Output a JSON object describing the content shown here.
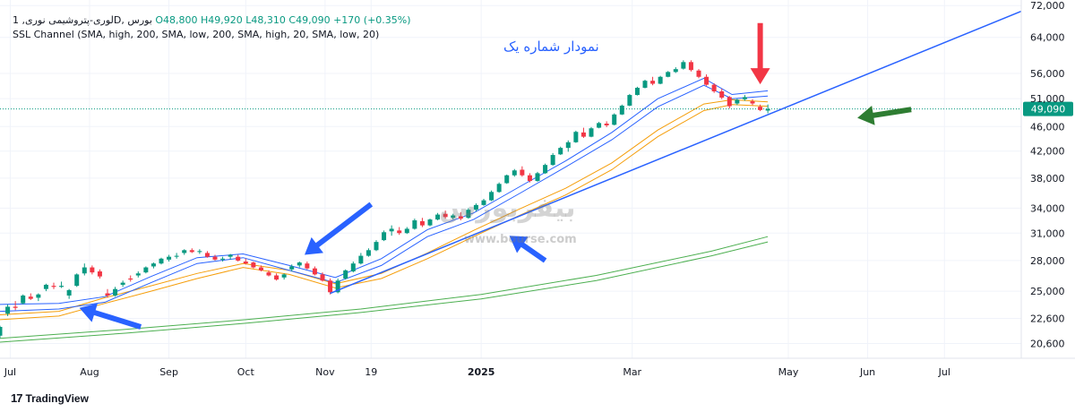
{
  "legend": {
    "symbol_line": "لوری-پتروشیمی نوری, 1D, بورس",
    "open": "O48,800",
    "high": "H49,920",
    "low": "L48,310",
    "close": "C49,090",
    "change": "+170 (+0.35%)",
    "indicator": "SSL Channel (SMA, high, 200, SMA, low, 200, SMA, high, 20, SMA, low, 20)"
  },
  "title_text": "نمودار شماره یک",
  "watermark": {
    "text": "بیفربورس",
    "url": "www.bourse.com"
  },
  "branding": {
    "logo_mark": "17",
    "name": "TradingView"
  },
  "colors": {
    "up": "#089981",
    "down": "#f23645",
    "grid": "#f0f3fa",
    "trendline": "#2962ff",
    "ssl_blue": "#2962ff",
    "ssl_orange": "#f59e0b",
    "ssl_green": "#4caf50",
    "price_line": "#089981",
    "arrow_blue": "#2962ff",
    "arrow_red": "#f23645",
    "arrow_green": "#2e7d32"
  },
  "chart_data": {
    "type": "candlestick",
    "y_scale": "log",
    "ylim": [
      19500,
      73500
    ],
    "y_ticks": [
      20600,
      22600,
      25000,
      28000,
      31000,
      34000,
      38000,
      42000,
      46000,
      51000,
      56000,
      64000,
      72000
    ],
    "y_tick_labels": [
      "20,600",
      "22,600",
      "25,000",
      "28,000",
      "31,000",
      "34,000",
      "38,000",
      "42,000",
      "46,000",
      "51,000",
      "56,000",
      "64,000",
      "72,000"
    ],
    "x_range": [
      "2024-06-27",
      "2025-07-31"
    ],
    "x_ticks": [
      {
        "date": "2024-07-01",
        "label": "Jul"
      },
      {
        "date": "2024-08-01",
        "label": "Aug"
      },
      {
        "date": "2024-09-01",
        "label": "Sep"
      },
      {
        "date": "2024-10-01",
        "label": "Oct"
      },
      {
        "date": "2024-11-01",
        "label": "Nov"
      },
      {
        "date": "2024-11-19",
        "label": "19"
      },
      {
        "date": "2025-01-01",
        "label": "2025"
      },
      {
        "date": "2025-03-01",
        "label": "Mar"
      },
      {
        "date": "2025-05-01",
        "label": "May"
      },
      {
        "date": "2025-06-01",
        "label": "Jun"
      },
      {
        "date": "2025-07-01",
        "label": "Jul"
      }
    ],
    "last_price": {
      "value": 49090,
      "label": "49,090"
    },
    "candles": [
      [
        "2024-06-27",
        21200,
        22000,
        21000,
        21900
      ],
      [
        "2024-06-30",
        23000,
        23800,
        22800,
        23600
      ],
      [
        "2024-07-03",
        23600,
        24100,
        23300,
        23500
      ],
      [
        "2024-07-06",
        23900,
        24700,
        23800,
        24600
      ],
      [
        "2024-07-09",
        24500,
        24800,
        24200,
        24300
      ],
      [
        "2024-07-12",
        24400,
        24800,
        24100,
        24700
      ],
      [
        "2024-07-15",
        25200,
        25700,
        25000,
        25600
      ],
      [
        "2024-07-18",
        25500,
        25800,
        25200,
        25400
      ],
      [
        "2024-07-21",
        25400,
        25900,
        25300,
        25500
      ],
      [
        "2024-07-24",
        24600,
        25200,
        24300,
        25100
      ],
      [
        "2024-07-27",
        25500,
        26700,
        25400,
        26600
      ],
      [
        "2024-07-30",
        26700,
        27700,
        26500,
        27300
      ],
      [
        "2024-08-02",
        27300,
        27500,
        26600,
        26800
      ],
      [
        "2024-08-05",
        26900,
        27100,
        26200,
        26400
      ],
      [
        "2024-08-08",
        24800,
        25200,
        24400,
        24600
      ],
      [
        "2024-08-11",
        24600,
        25400,
        24500,
        25200
      ],
      [
        "2024-08-14",
        25600,
        26000,
        25400,
        25800
      ],
      [
        "2024-08-17",
        26200,
        26500,
        25900,
        26100
      ],
      [
        "2024-08-20",
        26500,
        26900,
        26300,
        26700
      ],
      [
        "2024-08-23",
        26800,
        27400,
        26700,
        27300
      ],
      [
        "2024-08-26",
        27400,
        27800,
        27200,
        27700
      ],
      [
        "2024-08-29",
        27700,
        28300,
        27600,
        28200
      ],
      [
        "2024-09-01",
        28100,
        28600,
        27900,
        28400
      ],
      [
        "2024-09-04",
        28400,
        28800,
        28200,
        28500
      ],
      [
        "2024-09-07",
        28800,
        29200,
        28600,
        29100
      ],
      [
        "2024-09-10",
        29100,
        29300,
        28800,
        28900
      ],
      [
        "2024-09-13",
        28900,
        29200,
        28700,
        29000
      ],
      [
        "2024-09-16",
        28800,
        29000,
        28300,
        28400
      ],
      [
        "2024-09-19",
        28400,
        28600,
        28000,
        28100
      ],
      [
        "2024-09-22",
        28100,
        28400,
        27900,
        28200
      ],
      [
        "2024-09-25",
        28400,
        28700,
        28100,
        28600
      ],
      [
        "2024-09-28",
        28400,
        28600,
        27900,
        28000
      ],
      [
        "2024-10-01",
        27900,
        28200,
        27600,
        27700
      ],
      [
        "2024-10-04",
        27800,
        27900,
        27200,
        27300
      ],
      [
        "2024-10-07",
        27300,
        27500,
        26900,
        27000
      ],
      [
        "2024-10-10",
        26800,
        27000,
        26400,
        26500
      ],
      [
        "2024-10-13",
        26500,
        26700,
        26000,
        26100
      ],
      [
        "2024-10-16",
        26300,
        26700,
        26100,
        26600
      ],
      [
        "2024-10-19",
        27100,
        27600,
        26900,
        27400
      ],
      [
        "2024-10-22",
        27500,
        27900,
        27300,
        27800
      ],
      [
        "2024-10-25",
        27700,
        27900,
        27100,
        27200
      ],
      [
        "2024-10-28",
        27200,
        27400,
        26500,
        26600
      ],
      [
        "2024-10-31",
        26600,
        26800,
        25900,
        26000
      ],
      [
        "2024-11-03",
        26000,
        26200,
        24700,
        24900
      ],
      [
        "2024-11-06",
        24900,
        26200,
        24800,
        26000
      ],
      [
        "2024-11-09",
        26200,
        27100,
        26100,
        27000
      ],
      [
        "2024-11-12",
        26900,
        27900,
        26800,
        27700
      ],
      [
        "2024-11-15",
        27700,
        28800,
        27600,
        28500
      ],
      [
        "2024-11-18",
        28500,
        29300,
        28400,
        29100
      ],
      [
        "2024-11-21",
        29100,
        30200,
        29000,
        30000
      ],
      [
        "2024-11-24",
        30200,
        31300,
        30100,
        31100
      ],
      [
        "2024-11-27",
        31200,
        31900,
        30700,
        31500
      ],
      [
        "2024-11-30",
        31300,
        31700,
        30800,
        31000
      ],
      [
        "2024-12-03",
        31000,
        31700,
        30900,
        31500
      ],
      [
        "2024-12-06",
        31500,
        32700,
        31400,
        32500
      ],
      [
        "2024-12-09",
        32400,
        32800,
        31700,
        31900
      ],
      [
        "2024-12-12",
        31900,
        32700,
        31800,
        32600
      ],
      [
        "2024-12-15",
        32600,
        33400,
        32500,
        33200
      ],
      [
        "2024-12-18",
        33300,
        33700,
        32700,
        32900
      ],
      [
        "2024-12-21",
        32800,
        33300,
        32600,
        33100
      ],
      [
        "2024-12-24",
        33000,
        33500,
        32500,
        32700
      ],
      [
        "2024-12-27",
        32800,
        34000,
        32700,
        33800
      ],
      [
        "2024-12-30",
        33800,
        34600,
        33600,
        34400
      ],
      [
        "2025-01-02",
        34400,
        35200,
        34300,
        35000
      ],
      [
        "2025-01-05",
        35000,
        36300,
        34900,
        36100
      ],
      [
        "2025-01-08",
        36100,
        37400,
        36000,
        37200
      ],
      [
        "2025-01-11",
        37300,
        38500,
        37200,
        38400
      ],
      [
        "2025-01-14",
        38400,
        39300,
        38200,
        39100
      ],
      [
        "2025-01-17",
        39200,
        39700,
        38200,
        38400
      ],
      [
        "2025-01-20",
        38400,
        38700,
        37400,
        37600
      ],
      [
        "2025-01-23",
        37600,
        38900,
        37500,
        38700
      ],
      [
        "2025-01-26",
        38700,
        40100,
        38600,
        39900
      ],
      [
        "2025-01-29",
        39900,
        41700,
        39800,
        41400
      ],
      [
        "2025-02-01",
        41500,
        42700,
        41400,
        42500
      ],
      [
        "2025-02-04",
        42500,
        43700,
        41900,
        43400
      ],
      [
        "2025-02-07",
        43400,
        45300,
        43300,
        45100
      ],
      [
        "2025-02-10",
        45000,
        45800,
        44100,
        44300
      ],
      [
        "2025-02-13",
        44300,
        45900,
        44200,
        45700
      ],
      [
        "2025-02-16",
        45800,
        46800,
        45700,
        46600
      ],
      [
        "2025-02-19",
        46500,
        46900,
        45900,
        46200
      ],
      [
        "2025-02-22",
        46300,
        48300,
        46200,
        48100
      ],
      [
        "2025-02-25",
        48100,
        49900,
        48000,
        49700
      ],
      [
        "2025-02-28",
        49700,
        51900,
        49600,
        51700
      ],
      [
        "2025-03-03",
        51700,
        53300,
        51600,
        53100
      ],
      [
        "2025-03-06",
        53100,
        54700,
        53000,
        54500
      ],
      [
        "2025-03-09",
        54500,
        55300,
        53600,
        53900
      ],
      [
        "2025-03-12",
        53900,
        55500,
        53800,
        55300
      ],
      [
        "2025-03-15",
        55300,
        56500,
        55200,
        56300
      ],
      [
        "2025-03-18",
        56300,
        57300,
        56100,
        56900
      ],
      [
        "2025-03-21",
        57000,
        58800,
        56800,
        58400
      ],
      [
        "2025-03-24",
        58400,
        58800,
        56400,
        56700
      ],
      [
        "2025-03-27",
        56600,
        56900,
        55000,
        55300
      ],
      [
        "2025-03-30",
        55300,
        55800,
        53500,
        53700
      ],
      [
        "2025-04-02",
        53700,
        54000,
        52100,
        52400
      ],
      [
        "2025-04-05",
        52400,
        52900,
        50900,
        51200
      ],
      [
        "2025-04-08",
        51300,
        51500,
        49200,
        49600
      ],
      [
        "2025-04-11",
        50100,
        51000,
        49800,
        50800
      ],
      [
        "2025-04-14",
        50900,
        51700,
        50600,
        51300
      ],
      [
        "2025-04-17",
        50500,
        50900,
        49800,
        50100
      ],
      [
        "2025-04-20",
        49500,
        49900,
        48700,
        48900
      ],
      [
        "2025-04-23",
        48800,
        49920,
        48310,
        49090
      ]
    ],
    "ssl_channel_20": {
      "upper": [
        [
          "2024-06-27",
          23800
        ],
        [
          "2024-07-20",
          23900
        ],
        [
          "2024-08-07",
          24500
        ],
        [
          "2024-08-25",
          26400
        ],
        [
          "2024-09-12",
          28300
        ],
        [
          "2024-09-30",
          28700
        ],
        [
          "2024-10-18",
          27500
        ],
        [
          "2024-11-05",
          26300
        ],
        [
          "2024-11-23",
          28200
        ],
        [
          "2024-12-11",
          31400
        ],
        [
          "2024-12-29",
          33400
        ],
        [
          "2025-01-16",
          36800
        ],
        [
          "2025-02-03",
          40500
        ],
        [
          "2025-02-21",
          45000
        ],
        [
          "2025-03-11",
          51000
        ],
        [
          "2025-03-29",
          55000
        ],
        [
          "2025-04-09",
          51800
        ],
        [
          "2025-04-23",
          52500
        ]
      ],
      "lower": [
        [
          "2024-06-27",
          23200
        ],
        [
          "2024-07-20",
          23400
        ],
        [
          "2024-08-07",
          24000
        ],
        [
          "2024-08-25",
          25800
        ],
        [
          "2024-09-12",
          27700
        ],
        [
          "2024-09-30",
          28300
        ],
        [
          "2024-10-18",
          27000
        ],
        [
          "2024-11-05",
          25800
        ],
        [
          "2024-11-23",
          27500
        ],
        [
          "2024-12-11",
          30600
        ],
        [
          "2024-12-29",
          32600
        ],
        [
          "2025-01-16",
          35900
        ],
        [
          "2025-02-03",
          39600
        ],
        [
          "2025-02-21",
          43800
        ],
        [
          "2025-03-11",
          49500
        ],
        [
          "2025-03-29",
          53600
        ],
        [
          "2025-04-09",
          51000
        ],
        [
          "2025-04-23",
          51500
        ]
      ]
    },
    "ssl_orange_band": {
      "upper": [
        [
          "2024-06-27",
          22900
        ],
        [
          "2024-07-20",
          23200
        ],
        [
          "2024-08-07",
          24400
        ],
        [
          "2024-08-25",
          25500
        ],
        [
          "2024-09-12",
          26700
        ],
        [
          "2024-09-30",
          27700
        ],
        [
          "2024-10-18",
          27000
        ],
        [
          "2024-11-05",
          25700
        ],
        [
          "2024-11-23",
          26700
        ],
        [
          "2024-12-11",
          28800
        ],
        [
          "2024-12-29",
          31300
        ],
        [
          "2025-01-16",
          33900
        ],
        [
          "2025-02-03",
          36600
        ],
        [
          "2025-02-21",
          40200
        ],
        [
          "2025-03-11",
          45400
        ],
        [
          "2025-03-29",
          50000
        ],
        [
          "2025-04-09",
          50800
        ],
        [
          "2025-04-23",
          50400
        ]
      ],
      "lower": [
        [
          "2024-06-27",
          22500
        ],
        [
          "2024-07-20",
          22800
        ],
        [
          "2024-08-07",
          23900
        ],
        [
          "2024-08-25",
          25000
        ],
        [
          "2024-09-12",
          26200
        ],
        [
          "2024-09-30",
          27300
        ],
        [
          "2024-10-18",
          26600
        ],
        [
          "2024-11-05",
          25300
        ],
        [
          "2024-11-23",
          26200
        ],
        [
          "2024-12-11",
          28200
        ],
        [
          "2024-12-29",
          30600
        ],
        [
          "2025-01-16",
          33100
        ],
        [
          "2025-02-03",
          35700
        ],
        [
          "2025-02-21",
          39200
        ],
        [
          "2025-03-11",
          44300
        ],
        [
          "2025-03-29",
          48800
        ],
        [
          "2025-04-09",
          49900
        ],
        [
          "2025-04-23",
          49600
        ]
      ]
    },
    "ssl_channel_200": {
      "upper": [
        [
          "2024-06-27",
          21000
        ],
        [
          "2024-08-15",
          21700
        ],
        [
          "2024-10-01",
          22500
        ],
        [
          "2024-11-15",
          23400
        ],
        [
          "2025-01-01",
          24700
        ],
        [
          "2025-02-15",
          26500
        ],
        [
          "2025-04-01",
          29000
        ],
        [
          "2025-04-23",
          30600
        ]
      ],
      "lower": [
        [
          "2024-06-27",
          20700
        ],
        [
          "2024-08-15",
          21400
        ],
        [
          "2024-10-01",
          22200
        ],
        [
          "2024-11-15",
          23100
        ],
        [
          "2025-01-01",
          24300
        ],
        [
          "2025-02-15",
          26000
        ],
        [
          "2025-04-01",
          28500
        ],
        [
          "2025-04-23",
          30000
        ]
      ]
    },
    "trendline": [
      [
        "2024-11-03",
        24800
      ],
      [
        "2025-07-31",
        70500
      ]
    ],
    "annotations": [
      {
        "type": "arrow",
        "color": "blue",
        "from": [
          "2024-08-21",
          21900
        ],
        "to": [
          "2024-07-28",
          23500
        ]
      },
      {
        "type": "arrow",
        "color": "blue",
        "from": [
          "2024-11-19",
          34500
        ],
        "to": [
          "2024-10-24",
          28600
        ]
      },
      {
        "type": "arrow",
        "color": "blue",
        "from": [
          "2025-01-26",
          28000
        ],
        "to": [
          "2025-01-12",
          30700
        ]
      },
      {
        "type": "arrow",
        "color": "red",
        "from": [
          "2025-04-20",
          67500
        ],
        "to": [
          "2025-04-20",
          53800
        ]
      },
      {
        "type": "arrow",
        "color": "green",
        "from": [
          "2025-06-18",
          49000
        ],
        "to": [
          "2025-05-28",
          47500
        ]
      }
    ]
  }
}
